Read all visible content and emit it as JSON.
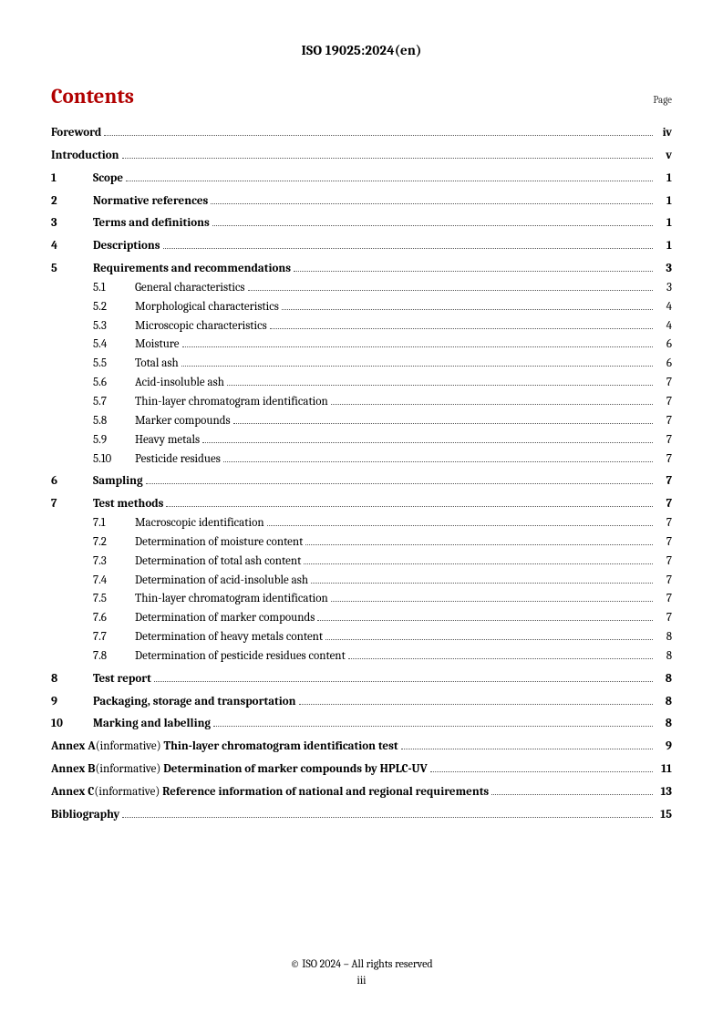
{
  "header": {
    "doc_id": "ISO 19025:2024(en)"
  },
  "contents": {
    "title": "Contents",
    "page_label": "Page"
  },
  "toc": [
    {
      "type": "front",
      "title": "Foreword",
      "page": "iv",
      "gap": false
    },
    {
      "type": "front",
      "title": "Introduction",
      "page": "v",
      "gap": true
    },
    {
      "type": "section",
      "num": "1",
      "title": "Scope",
      "page": "1",
      "gap": true
    },
    {
      "type": "section",
      "num": "2",
      "title": "Normative references",
      "page": "1",
      "gap": true
    },
    {
      "type": "section",
      "num": "3",
      "title": "Terms and definitions",
      "page": "1",
      "gap": true
    },
    {
      "type": "section",
      "num": "4",
      "title": "Descriptions",
      "page": "1",
      "gap": true
    },
    {
      "type": "section",
      "num": "5",
      "title": "Requirements and recommendations",
      "page": "3",
      "gap": true
    },
    {
      "type": "sub",
      "num": "5.1",
      "title": "General characteristics",
      "page": "3"
    },
    {
      "type": "sub",
      "num": "5.2",
      "title": "Morphological characteristics",
      "page": "4"
    },
    {
      "type": "sub",
      "num": "5.3",
      "title": "Microscopic characteristics",
      "page": "4"
    },
    {
      "type": "sub",
      "num": "5.4",
      "title": "Moisture",
      "page": "6"
    },
    {
      "type": "sub",
      "num": "5.5",
      "title": "Total ash",
      "page": "6"
    },
    {
      "type": "sub",
      "num": "5.6",
      "title": "Acid-insoluble ash",
      "page": "7"
    },
    {
      "type": "sub",
      "num": "5.7",
      "title": "Thin-layer chromatogram identification",
      "page": "7"
    },
    {
      "type": "sub",
      "num": "5.8",
      "title": "Marker compounds",
      "page": "7"
    },
    {
      "type": "sub",
      "num": "5.9",
      "title": "Heavy metals",
      "page": "7"
    },
    {
      "type": "sub",
      "num": "5.10",
      "title": "Pesticide residues",
      "page": "7"
    },
    {
      "type": "section",
      "num": "6",
      "title": "Sampling",
      "page": "7",
      "gap": true
    },
    {
      "type": "section",
      "num": "7",
      "title": "Test methods",
      "page": "7",
      "gap": true
    },
    {
      "type": "sub",
      "num": "7.1",
      "title": "Macroscopic identification",
      "page": "7"
    },
    {
      "type": "sub",
      "num": "7.2",
      "title": "Determination of moisture content",
      "page": "7"
    },
    {
      "type": "sub",
      "num": "7.3",
      "title": "Determination of total ash content",
      "page": "7"
    },
    {
      "type": "sub",
      "num": "7.4",
      "title": "Determination of acid-insoluble ash",
      "page": "7"
    },
    {
      "type": "sub",
      "num": "7.5",
      "title": "Thin-layer chromatogram identification",
      "page": "7"
    },
    {
      "type": "sub",
      "num": "7.6",
      "title": "Determination of marker compounds",
      "page": "7"
    },
    {
      "type": "sub",
      "num": "7.7",
      "title": "Determination of heavy metals content",
      "page": "8"
    },
    {
      "type": "sub",
      "num": "7.8",
      "title": "Determination of pesticide residues content",
      "page": "8"
    },
    {
      "type": "section",
      "num": "8",
      "title": "Test report",
      "page": "8",
      "gap": true
    },
    {
      "type": "section",
      "num": "9",
      "title": "Packaging, storage and transportation",
      "page": "8",
      "gap": true
    },
    {
      "type": "section",
      "num": "10",
      "title": "Marking and labelling",
      "page": "8",
      "gap": true
    },
    {
      "type": "annex",
      "label": "Annex A",
      "paren": "(informative)",
      "title": "Thin-layer chromatogram identification test",
      "page": "9",
      "gap": true
    },
    {
      "type": "annex",
      "label": "Annex B",
      "paren": "(informative)",
      "title": "Determination of marker compounds by HPLC-UV",
      "page": "11",
      "gap": true
    },
    {
      "type": "annex",
      "label": "Annex C",
      "paren": "(informative)",
      "title": "Reference information of national and regional requirements",
      "page": "13",
      "gap": true
    },
    {
      "type": "front",
      "title": "Bibliography",
      "page": "15",
      "gap": true
    }
  ],
  "footer": {
    "copyright": "© ISO 2024 – All rights reserved",
    "pagenum": "iii"
  }
}
